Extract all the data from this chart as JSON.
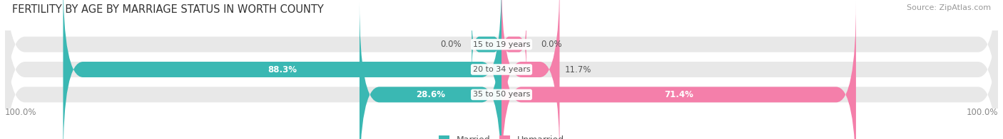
{
  "title": "FERTILITY BY AGE BY MARRIAGE STATUS IN WORTH COUNTY",
  "source": "Source: ZipAtlas.com",
  "categories": [
    "15 to 19 years",
    "20 to 34 years",
    "35 to 50 years"
  ],
  "married_values": [
    0.0,
    88.3,
    28.6
  ],
  "unmarried_values": [
    0.0,
    11.7,
    71.4
  ],
  "married_color": "#3ab8b3",
  "unmarried_color": "#f47faa",
  "bar_bg_color": "#e8e8e8",
  "bar_height": 0.62,
  "xlim": [
    -100,
    100
  ],
  "title_fontsize": 10.5,
  "source_fontsize": 8,
  "label_fontsize": 8.5,
  "category_fontsize": 8,
  "legend_fontsize": 9,
  "axis_label_left": "100.0%",
  "axis_label_right": "100.0%",
  "figsize": [
    14.06,
    1.96
  ],
  "dpi": 100
}
